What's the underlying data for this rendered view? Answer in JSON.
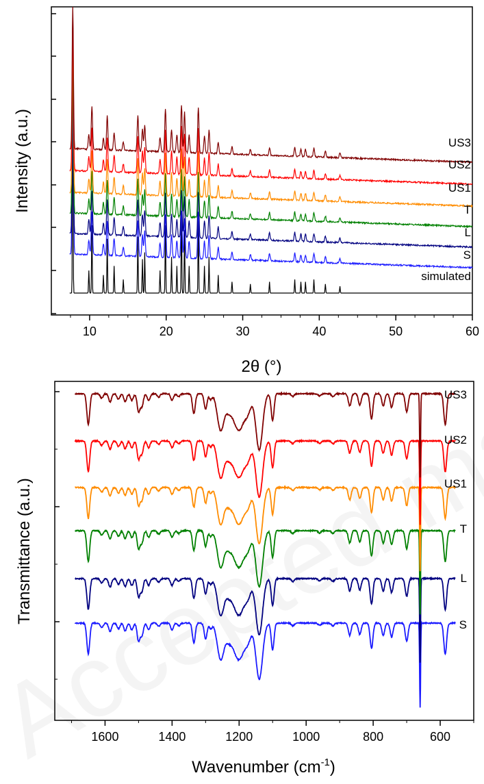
{
  "watermark": "Accepted manuscript",
  "chart_data": [
    {
      "type": "line",
      "xlabel": "2θ (°)",
      "ylabel": "Intensity (a.u.)",
      "xlim": [
        5,
        60
      ],
      "xticks": [
        10,
        20,
        30,
        40,
        50,
        60
      ],
      "grid": false,
      "legend": "inline labels at right end of each trace",
      "baseline_y_relative": [
        0,
        0.58,
        0.7,
        0.81,
        0.92,
        1.03,
        1.14
      ],
      "peaks_2theta": [
        7.8,
        9.9,
        10.3,
        11.8,
        12.3,
        13.2,
        14.4,
        16.3,
        16.9,
        17.2,
        19.2,
        19.9,
        20.7,
        21.4,
        22.0,
        22.4,
        23.0,
        24.2,
        25.0,
        25.6,
        26.8,
        28.6,
        31.0,
        33.5,
        36.8,
        37.6,
        38.2,
        39.3,
        40.8,
        42.7
      ],
      "peaks_relative_intensity": [
        1.0,
        0.1,
        0.3,
        0.08,
        0.24,
        0.12,
        0.06,
        0.25,
        0.15,
        0.18,
        0.1,
        0.3,
        0.16,
        0.12,
        0.33,
        0.28,
        0.12,
        0.32,
        0.12,
        0.16,
        0.08,
        0.05,
        0.04,
        0.05,
        0.06,
        0.05,
        0.05,
        0.06,
        0.04,
        0.03
      ],
      "series": [
        {
          "name": "simulated",
          "color": "#000000"
        },
        {
          "name": "S",
          "color": "#1a1aff"
        },
        {
          "name": "L",
          "color": "#000080"
        },
        {
          "name": "T",
          "color": "#008000"
        },
        {
          "name": "US1",
          "color": "#ff8c00"
        },
        {
          "name": "US2",
          "color": "#ff0000"
        },
        {
          "name": "US3",
          "color": "#800000"
        }
      ]
    },
    {
      "type": "line",
      "xlabel": "Wavenumber (cm",
      "xlabel_sup": "-1",
      "xlabel_end": ")",
      "ylabel": "Transmittance (a.u.)",
      "xlim": [
        1750,
        500
      ],
      "x_reversed": true,
      "xticks": [
        1600,
        1400,
        1200,
        1000,
        800,
        600
      ],
      "grid": false,
      "legend": "inline labels at right of each trace",
      "bands_cm1": [
        1650,
        1610,
        1585,
        1560,
        1540,
        1520,
        1500,
        1490,
        1470,
        1440,
        1400,
        1380,
        1335,
        1300,
        1285,
        1255,
        1230,
        1210,
        1195,
        1175,
        1140,
        1100,
        1040,
        960,
        920,
        870,
        840,
        805,
        770,
        745,
        700,
        660,
        585
      ],
      "bands_depth": [
        0.55,
        0.08,
        0.15,
        0.1,
        0.14,
        0.12,
        0.32,
        0.22,
        0.12,
        0.06,
        0.12,
        0.05,
        0.35,
        0.28,
        0.1,
        0.65,
        0.3,
        0.4,
        0.45,
        0.35,
        1.0,
        0.48,
        0.05,
        0.04,
        0.05,
        0.22,
        0.2,
        0.45,
        0.22,
        0.25,
        0.32,
        1.5,
        0.55
      ],
      "series": [
        {
          "name": "S",
          "color": "#1a1aff"
        },
        {
          "name": "L",
          "color": "#000080"
        },
        {
          "name": "T",
          "color": "#008000"
        },
        {
          "name": "US1",
          "color": "#ff8c00"
        },
        {
          "name": "US2",
          "color": "#ff0000"
        },
        {
          "name": "US3",
          "color": "#800000"
        }
      ]
    }
  ]
}
